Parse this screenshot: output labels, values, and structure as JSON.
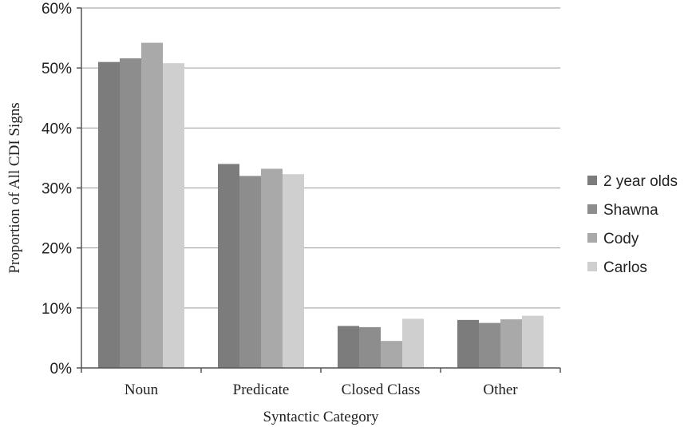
{
  "chart_data": {
    "type": "bar",
    "title": "",
    "xlabel": "Syntactic Category",
    "ylabel": "Proportion of All CDI Signs",
    "categories": [
      "Noun",
      "Predicate",
      "Closed Class",
      "Other"
    ],
    "ylim": [
      0,
      60
    ],
    "yticks": [
      0,
      10,
      20,
      30,
      40,
      50,
      60
    ],
    "ytick_labels": [
      "0%",
      "10%",
      "20%",
      "30%",
      "40%",
      "50%",
      "60%"
    ],
    "grid": true,
    "legend_position": "right",
    "series": [
      {
        "name": "2 year olds",
        "values": [
          51,
          34,
          7,
          8
        ],
        "color": "#7c7c7c"
      },
      {
        "name": "Shawna",
        "values": [
          51.6,
          32,
          6.8,
          7.5
        ],
        "color": "#8d8d8d"
      },
      {
        "name": "Cody",
        "values": [
          54.2,
          33.2,
          4.5,
          8.1
        ],
        "color": "#a9a9a9"
      },
      {
        "name": "Carlos",
        "values": [
          50.8,
          32.3,
          8.2,
          8.7
        ],
        "color": "#cfcfcf"
      }
    ]
  }
}
